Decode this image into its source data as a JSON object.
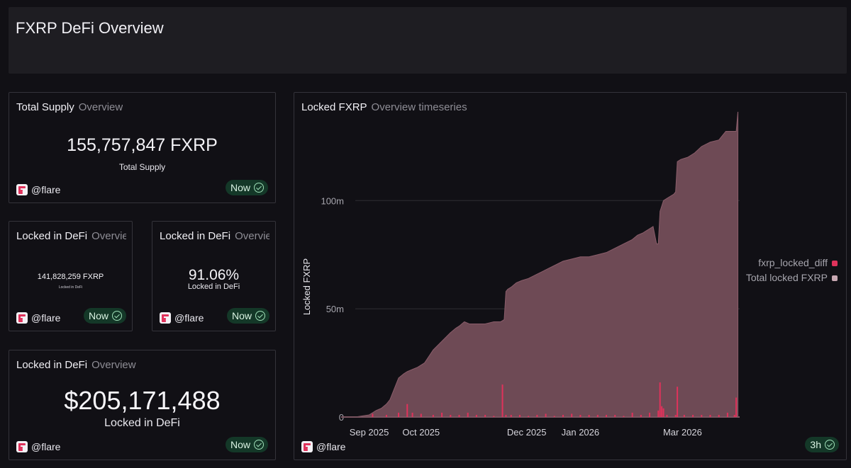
{
  "header": {
    "title": "FXRP DeFi Overview"
  },
  "cards": {
    "total_supply": {
      "title": "Total Supply",
      "subtitle": "Overview",
      "value": "155,757,847 FXRP",
      "label": "Total Supply",
      "brand": "@flare",
      "badge": "Now"
    },
    "locked_small": {
      "title": "Locked in DeFi",
      "subtitle": "Overview",
      "value": "141,828,259 FXRP",
      "label": "Locked in DeFi",
      "brand": "@flare",
      "badge": "Now"
    },
    "locked_pct": {
      "title": "Locked in DeFi",
      "subtitle": "Overview",
      "value": "91.06%",
      "label": "Locked in DeFi",
      "brand": "@flare",
      "badge": "Now"
    },
    "locked_usd": {
      "title": "Locked in DeFi",
      "subtitle": "Overview",
      "value": "$205,171,488",
      "label": "Locked in DeFi",
      "brand": "@flare",
      "badge": "Now"
    },
    "chart": {
      "title": "Locked FXRP",
      "subtitle": "Overview timeseries",
      "brand": "@flare",
      "badge": "3h"
    }
  },
  "colors": {
    "area": "#6e4a55",
    "area_line": "#8a5d6a",
    "diff_bar": "#e0325b",
    "badge_bg": "#143828"
  },
  "chart_data": {
    "type": "area",
    "title": "Locked FXRP",
    "ylabel": "Locked FXRP",
    "xlabel": "",
    "ylim": [
      0,
      140
    ],
    "yunit": "m",
    "yticks": [
      {
        "value": 0,
        "label": "0"
      },
      {
        "value": 50,
        "label": "50m"
      },
      {
        "value": 100,
        "label": "100m"
      }
    ],
    "xlim": [
      0,
      222
    ],
    "xticks": [
      {
        "day": 8,
        "label": "Sep 2025"
      },
      {
        "day": 38,
        "label": "Oct 2025"
      },
      {
        "day": 99,
        "label": "Dec 2025"
      },
      {
        "day": 130,
        "label": "Jan 2026"
      },
      {
        "day": 189,
        "label": "Mar 2026"
      }
    ],
    "legend": [
      {
        "name": "fxrp_locked_diff",
        "color": "#e0325b"
      },
      {
        "name": "Total locked FXRP",
        "color": "#c9a9b3"
      }
    ],
    "series": [
      {
        "name": "Total locked FXRP",
        "x": [
          0,
          8,
          10,
          12,
          15,
          18,
          20,
          22,
          25,
          28,
          30,
          33,
          36,
          40,
          45,
          50,
          55,
          58,
          60,
          63,
          66,
          70,
          75,
          80,
          84,
          86,
          87,
          88,
          90,
          93,
          96,
          100,
          105,
          110,
          115,
          120,
          125,
          130,
          135,
          140,
          145,
          150,
          155,
          160,
          163,
          166,
          168,
          170,
          172,
          174,
          175,
          176,
          178,
          180,
          182,
          184,
          185,
          186,
          188,
          192,
          196,
          200,
          205,
          210,
          214,
          215,
          217,
          219,
          220,
          221
        ],
        "values": [
          0,
          1,
          2,
          3,
          4,
          6,
          8,
          12,
          18,
          20,
          21,
          22,
          23,
          25,
          31,
          35,
          39,
          41,
          42,
          44,
          43,
          43,
          43,
          44,
          44,
          45,
          58,
          59,
          60,
          62,
          63,
          64,
          66,
          68,
          70,
          72,
          73,
          74,
          74,
          75,
          76,
          78,
          80,
          82,
          84,
          85,
          86,
          87,
          88,
          80,
          80,
          95,
          100,
          101,
          102,
          103,
          104,
          118,
          119,
          120,
          122,
          125,
          127,
          128,
          132,
          132,
          132,
          132,
          132,
          141
        ]
      },
      {
        "name": "fxrp_locked_diff",
        "x": [
          10,
          18,
          25,
          30,
          33,
          38,
          45,
          50,
          55,
          60,
          65,
          70,
          75,
          80,
          85,
          87,
          90,
          95,
          100,
          105,
          110,
          115,
          120,
          125,
          130,
          135,
          140,
          145,
          150,
          155,
          160,
          165,
          170,
          175,
          176,
          177,
          178,
          180,
          185,
          186,
          190,
          195,
          200,
          205,
          210,
          215,
          219,
          220
        ],
        "values": [
          1.5,
          1,
          2,
          6,
          2,
          1.5,
          1,
          2,
          1,
          1,
          2,
          1,
          1,
          0.5,
          15,
          1,
          1,
          1,
          0.5,
          1,
          1.5,
          0.5,
          1,
          1.5,
          1,
          1,
          1,
          1,
          1,
          0.5,
          2,
          1,
          2,
          3,
          16,
          5,
          4,
          1,
          1,
          14,
          1,
          1,
          1,
          1,
          1,
          2,
          1,
          9
        ]
      }
    ]
  }
}
